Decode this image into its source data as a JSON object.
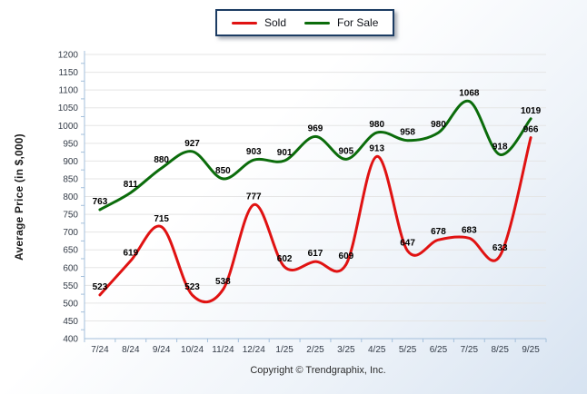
{
  "legend": {
    "items": [
      {
        "label": "Sold",
        "color": "#e01212"
      },
      {
        "label": "For Sale",
        "color": "#0b6c0b"
      }
    ]
  },
  "chart_data": {
    "type": "line",
    "smooth": true,
    "title": "",
    "xlabel": "",
    "ylabel": "Average Price (in $,000)",
    "ylim": [
      400,
      1200
    ],
    "y_ticks": [
      400,
      450,
      500,
      550,
      600,
      650,
      700,
      750,
      800,
      850,
      900,
      950,
      1000,
      1050,
      1100,
      1150,
      1200
    ],
    "grid": true,
    "legend_position": "top-center",
    "categories": [
      "7/24",
      "8/24",
      "9/24",
      "10/24",
      "11/24",
      "12/24",
      "1/25",
      "2/25",
      "3/25",
      "4/25",
      "5/25",
      "6/25",
      "7/25",
      "8/25",
      "9/25"
    ],
    "series": [
      {
        "name": "Sold",
        "color": "#e01212",
        "values": [
          523,
          619,
          715,
          523,
          538,
          777,
          602,
          617,
          609,
          913,
          647,
          678,
          683,
          633,
          966
        ]
      },
      {
        "name": "For Sale",
        "color": "#0b6c0b",
        "values": [
          763,
          811,
          880,
          927,
          850,
          903,
          901,
          969,
          905,
          980,
          958,
          980,
          1068,
          918,
          1019
        ]
      }
    ],
    "colors": {
      "gridline": "#e5e5e5",
      "axis": "#a3bfdb",
      "tick_label": "#333b47",
      "data_label": "#000000"
    }
  },
  "footer": {
    "copyright": "Copyright © Trendgraphix, Inc."
  }
}
